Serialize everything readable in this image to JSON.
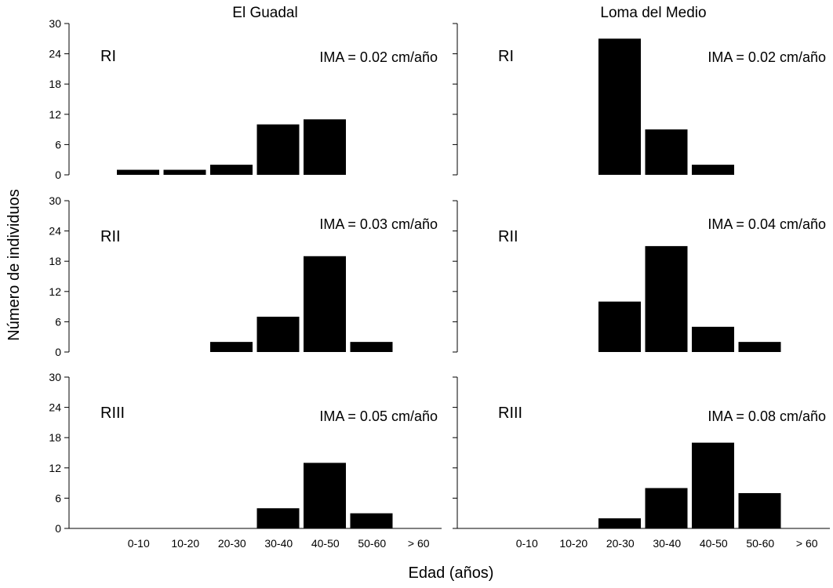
{
  "figure": {
    "xlabel": "Edad (años)",
    "ylabel": "Número de individuos"
  },
  "chart_data": [
    {
      "type": "bar",
      "title": "El Guadal",
      "label": "RI",
      "annotation": "IMA = 0.02 cm/año",
      "categories": [
        "0-10",
        "10-20",
        "20-30",
        "30-40",
        "40-50",
        "50-60",
        "> 60"
      ],
      "values": [
        1,
        1,
        2,
        10,
        11,
        0,
        0
      ],
      "ylim": [
        0,
        30
      ],
      "yticks": [
        "0",
        "6",
        "12",
        "18",
        "24",
        "30"
      ],
      "color": "#000000"
    },
    {
      "type": "bar",
      "title": "Loma del Medio",
      "label": "RI",
      "annotation": "IMA = 0.02 cm/año",
      "categories": [
        "0-10",
        "10-20",
        "20-30",
        "30-40",
        "40-50",
        "50-60",
        "> 60"
      ],
      "values": [
        0,
        0,
        27,
        9,
        2,
        0,
        0
      ],
      "ylim": [
        0,
        30
      ],
      "yticks": [
        "0",
        "6",
        "12",
        "18",
        "24",
        "30"
      ],
      "color": "#000000"
    },
    {
      "type": "bar",
      "title": "",
      "label": "RII",
      "annotation": "IMA = 0.03 cm/año",
      "categories": [
        "0-10",
        "10-20",
        "20-30",
        "30-40",
        "40-50",
        "50-60",
        "> 60"
      ],
      "values": [
        0,
        0,
        2,
        7,
        19,
        2,
        0
      ],
      "ylim": [
        0,
        30
      ],
      "yticks": [
        "0",
        "6",
        "12",
        "18",
        "24",
        "30"
      ],
      "color": "#000000"
    },
    {
      "type": "bar",
      "title": "",
      "label": "RII",
      "annotation": "IMA = 0.04 cm/año",
      "categories": [
        "0-10",
        "10-20",
        "20-30",
        "30-40",
        "40-50",
        "50-60",
        "> 60"
      ],
      "values": [
        0,
        0,
        10,
        21,
        5,
        2,
        0
      ],
      "ylim": [
        0,
        30
      ],
      "yticks": [
        "0",
        "6",
        "12",
        "18",
        "24",
        "30"
      ],
      "color": "#000000"
    },
    {
      "type": "bar",
      "title": "",
      "label": "RIII",
      "annotation": "IMA = 0.05 cm/año",
      "categories": [
        "0-10",
        "10-20",
        "20-30",
        "30-40",
        "40-50",
        "50-60",
        "> 60"
      ],
      "values": [
        0,
        0,
        0,
        4,
        13,
        3,
        0
      ],
      "ylim": [
        0,
        30
      ],
      "yticks": [
        "0",
        "6",
        "12",
        "18",
        "24",
        "30"
      ],
      "color": "#000000"
    },
    {
      "type": "bar",
      "title": "",
      "label": "RIII",
      "annotation": "IMA = 0.08 cm/año",
      "categories": [
        "0-10",
        "10-20",
        "20-30",
        "30-40",
        "40-50",
        "50-60",
        "> 60"
      ],
      "values": [
        0,
        0,
        2,
        8,
        17,
        7,
        0
      ],
      "ylim": [
        0,
        30
      ],
      "yticks": [
        "0",
        "6",
        "12",
        "18",
        "24",
        "30"
      ],
      "color": "#000000"
    }
  ]
}
